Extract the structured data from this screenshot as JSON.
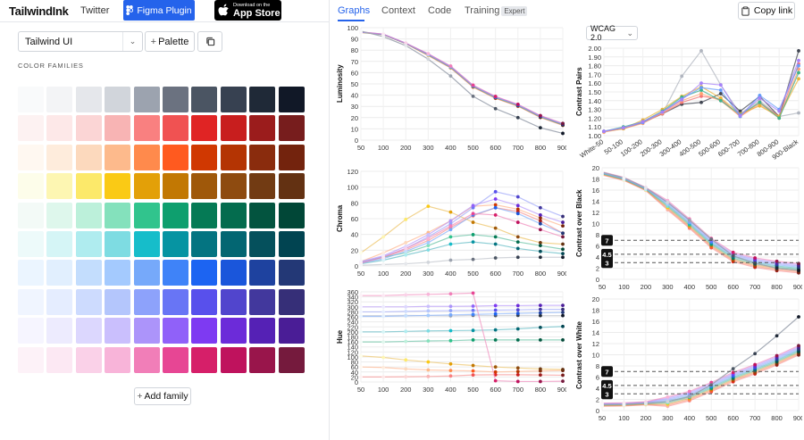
{
  "header": {
    "brand": "TailwindInk",
    "twitter": "Twitter",
    "figma": "Figma Plugin",
    "appstore_small": "Download on the",
    "appstore_large": "App Store"
  },
  "toolbar": {
    "select_value": "Tailwind UI",
    "palette_label": "Palette",
    "section_label": "COLOR FAMILIES",
    "add_family_label": "Add family"
  },
  "tabs": [
    {
      "label": "Graphs"
    },
    {
      "label": "Context"
    },
    {
      "label": "Code"
    },
    {
      "label": "Training"
    }
  ],
  "training_badge": "Expert",
  "copy_link": "Copy link",
  "wcag_value": "WCAG 2.0",
  "palette": {
    "rows": [
      [
        "#f9fafb",
        "#f3f4f6",
        "#e5e7eb",
        "#d1d5db",
        "#9ca3af",
        "#6b7280",
        "#4b5563",
        "#374151",
        "#1f2937",
        "#111827"
      ],
      [
        "#fdf2f2",
        "#fde8e8",
        "#fbd5d5",
        "#f8b4b4",
        "#f98080",
        "#f05252",
        "#e02424",
        "#c81e1e",
        "#9b1c1c",
        "#771d1d"
      ],
      [
        "#fff8f1",
        "#feecdc",
        "#fcd9bd",
        "#fdba8c",
        "#ff8a4c",
        "#ff5a1f",
        "#d03801",
        "#b43403",
        "#8a2c0d",
        "#73230d"
      ],
      [
        "#fdfdea",
        "#fdf6b2",
        "#fce96a",
        "#faca15",
        "#e3a008",
        "#c27803",
        "#9f580a",
        "#8e4b10",
        "#723b13",
        "#633112"
      ],
      [
        "#f3faf7",
        "#def7ec",
        "#bcf0da",
        "#84e1bc",
        "#31c48d",
        "#0e9f6e",
        "#057a55",
        "#046c4e",
        "#03543f",
        "#014737"
      ],
      [
        "#edfafa",
        "#d5f5f6",
        "#afecef",
        "#7edce2",
        "#16bdca",
        "#0694a2",
        "#047481",
        "#036672",
        "#05505c",
        "#014451"
      ],
      [
        "#ebf5ff",
        "#e1effe",
        "#c3ddfd",
        "#a4cafe",
        "#76a9fa",
        "#3f83f8",
        "#1c64f2",
        "#1a56db",
        "#1e429f",
        "#233876"
      ],
      [
        "#f0f5ff",
        "#e5edff",
        "#cddbfe",
        "#b4c6fc",
        "#8da2fb",
        "#6875f5",
        "#5850ec",
        "#5145cd",
        "#42389d",
        "#362f78"
      ],
      [
        "#f6f5ff",
        "#edebfe",
        "#dcd7fe",
        "#cabffd",
        "#ac94fa",
        "#9061f9",
        "#7e3af2",
        "#6c2bd9",
        "#5521b5",
        "#4a1d96"
      ],
      [
        "#fdf2f8",
        "#fce8f3",
        "#fad1e8",
        "#f8b4d9",
        "#f17eb8",
        "#e74694",
        "#d61f69",
        "#bf125d",
        "#99154b",
        "#751a3d"
      ]
    ]
  },
  "graphs": {
    "x_shades": [
      "50",
      "100",
      "200",
      "300",
      "400",
      "500",
      "600",
      "700",
      "800",
      "900"
    ],
    "pair_labels": [
      "White-50",
      "50-100",
      "100-200",
      "200-300",
      "300-400",
      "400-500",
      "500-600",
      "600-700",
      "700-800",
      "800-900",
      "900-Black"
    ],
    "luminosity": {
      "ylabel": "Luminosity",
      "yticks": [
        "0",
        "10",
        "20",
        "30",
        "40",
        "50",
        "60",
        "70",
        "80",
        "90",
        "100"
      ],
      "ymax": 100,
      "gray": [
        97,
        92,
        84,
        72,
        57,
        39,
        28,
        20,
        11,
        6
      ],
      "colored": [
        96,
        94,
        86,
        76,
        65,
        48,
        38,
        31,
        21,
        14
      ]
    },
    "chroma": {
      "ylabel": "Chroma",
      "yticks": [
        "0",
        "20",
        "40",
        "60",
        "80",
        "100",
        "120"
      ],
      "ymax": 130,
      "series": [
        {
          "color": "#9ca3af",
          "values": [
            1,
            2,
            3,
            5,
            8,
            9,
            11,
            12,
            12,
            12
          ]
        },
        {
          "color": "#f05252",
          "values": [
            5,
            12,
            22,
            35,
            53,
            69,
            80,
            75,
            62,
            45
          ]
        },
        {
          "color": "#ff8a4c",
          "values": [
            6,
            18,
            32,
            46,
            62,
            82,
            84,
            78,
            66,
            55
          ]
        },
        {
          "color": "#e3a008",
          "values": [
            18,
            40,
            64,
            82,
            74,
            60,
            52,
            40,
            32,
            30
          ]
        },
        {
          "color": "#0e9f6e",
          "values": [
            5,
            12,
            18,
            28,
            40,
            43,
            40,
            33,
            28,
            23
          ]
        },
        {
          "color": "#0694a2",
          "values": [
            3,
            8,
            15,
            22,
            30,
            33,
            30,
            24,
            20,
            17
          ]
        },
        {
          "color": "#3f83f8",
          "values": [
            4,
            10,
            20,
            32,
            50,
            70,
            80,
            72,
            58,
            45
          ]
        },
        {
          "color": "#6875f5",
          "values": [
            5,
            13,
            24,
            40,
            58,
            80,
            102,
            95,
            80,
            68
          ]
        },
        {
          "color": "#9061f9",
          "values": [
            6,
            14,
            27,
            43,
            62,
            83,
            92,
            83,
            70,
            60
          ]
        },
        {
          "color": "#e74694",
          "values": [
            4,
            12,
            24,
            38,
            55,
            72,
            70,
            60,
            50,
            40
          ]
        }
      ]
    },
    "hue": {
      "ylabel": "Hue",
      "yticks": [
        "0",
        "20",
        "40",
        "60",
        "80",
        "100",
        "120",
        "140",
        "160",
        "180",
        "200",
        "220",
        "240",
        "260",
        "280",
        "300",
        "320",
        "340",
        "360"
      ],
      "ymax": 360,
      "series": [
        {
          "color": "#9ca3af",
          "values": [
            265,
            265,
            266,
            265,
            264,
            266,
            265,
            266,
            265,
            265
          ]
        },
        {
          "color": "#f05252",
          "values": [
            20,
            20,
            21,
            22,
            24,
            28,
            29,
            29,
            28,
            27
          ]
        },
        {
          "color": "#ff8a4c",
          "values": [
            60,
            58,
            52,
            48,
            46,
            44,
            40,
            42,
            44,
            46
          ]
        },
        {
          "color": "#e3a008",
          "values": [
            104,
            98,
            88,
            80,
            72,
            66,
            60,
            56,
            52,
            50
          ]
        },
        {
          "color": "#0e9f6e",
          "values": [
            160,
            160,
            162,
            164,
            165,
            168,
            168,
            168,
            168,
            168
          ]
        },
        {
          "color": "#0694a2",
          "values": [
            200,
            200,
            202,
            204,
            205,
            206,
            208,
            212,
            218,
            222
          ]
        },
        {
          "color": "#3f83f8",
          "values": [
            262,
            262,
            264,
            266,
            268,
            270,
            272,
            274,
            276,
            278
          ]
        },
        {
          "color": "#6875f5",
          "values": [
            280,
            280,
            282,
            284,
            285,
            286,
            287,
            288,
            290,
            290
          ]
        },
        {
          "color": "#9061f9",
          "values": [
            300,
            300,
            300,
            302,
            302,
            303,
            305,
            305,
            306,
            306
          ]
        },
        {
          "color": "#e74694",
          "values": [
            345,
            345,
            348,
            350,
            352,
            355,
            5,
            2,
            2,
            3
          ]
        }
      ]
    },
    "contrast_pairs": {
      "ylabel": "Contrast Pairs",
      "yticks": [
        "1.00",
        "1.10",
        "1.20",
        "1.30",
        "1.40",
        "1.50",
        "1.60",
        "1.70",
        "1.80",
        "1.90",
        "2.00"
      ],
      "ymin": 1,
      "ymax": 2,
      "series": [
        {
          "color": "#9ca3af",
          "values": [
            1.05,
            1.08,
            1.15,
            1.25,
            1.68,
            1.97,
            1.58,
            1.25,
            1.4,
            1.22,
            1.26
          ]
        },
        {
          "color": "#111827",
          "values": [
            1.05,
            1.08,
            1.15,
            1.25,
            1.36,
            1.38,
            1.48,
            1.28,
            1.45,
            1.22,
            1.97
          ]
        },
        {
          "color": "#f05252",
          "values": [
            1.05,
            1.08,
            1.15,
            1.25,
            1.38,
            1.45,
            1.42,
            1.22,
            1.38,
            1.22,
            1.82
          ]
        },
        {
          "color": "#ff8a4c",
          "values": [
            1.04,
            1.08,
            1.14,
            1.26,
            1.4,
            1.48,
            1.4,
            1.22,
            1.36,
            1.2,
            1.76
          ]
        },
        {
          "color": "#e3a008",
          "values": [
            1.05,
            1.08,
            1.18,
            1.3,
            1.45,
            1.56,
            1.43,
            1.25,
            1.34,
            1.22,
            1.65
          ]
        },
        {
          "color": "#0e9f6e",
          "values": [
            1.05,
            1.1,
            1.16,
            1.28,
            1.44,
            1.52,
            1.4,
            1.24,
            1.38,
            1.2,
            1.72
          ]
        },
        {
          "color": "#3f83f8",
          "values": [
            1.05,
            1.09,
            1.15,
            1.27,
            1.42,
            1.55,
            1.52,
            1.22,
            1.46,
            1.3,
            1.8
          ]
        },
        {
          "color": "#9061f9",
          "values": [
            1.05,
            1.09,
            1.16,
            1.27,
            1.41,
            1.6,
            1.58,
            1.23,
            1.43,
            1.28,
            1.86
          ]
        }
      ]
    },
    "contrast_black": {
      "ylabel": "Contrast over Black",
      "yticks": [
        "0",
        "2",
        "4",
        "6",
        "8",
        "10",
        "12",
        "14",
        "16",
        "18",
        "20"
      ],
      "ymax": 20,
      "gray": [
        19.2,
        18.2,
        16.4,
        13.8,
        10.6,
        7.2,
        4.2,
        2.9,
        2.0,
        1.6
      ],
      "colored": [
        19.0,
        18.0,
        16.2,
        13.3,
        10.0,
        6.5,
        4.0,
        3.0,
        2.4,
        2.0
      ],
      "thresholds": [
        "7",
        "4.5",
        "3"
      ]
    },
    "contrast_white": {
      "ylabel": "Contrast over White",
      "yticks": [
        "0",
        "2",
        "4",
        "6",
        "8",
        "10",
        "12",
        "14",
        "16",
        "18",
        "20"
      ],
      "ymax": 20,
      "gray": [
        1.05,
        1.1,
        1.3,
        1.6,
        2.5,
        4.6,
        7.5,
        10.2,
        13.4,
        16.8
      ],
      "colored": [
        1.05,
        1.1,
        1.3,
        1.6,
        2.6,
        4.2,
        6.0,
        7.4,
        9.0,
        10.8
      ],
      "thresholds": [
        "7",
        "4.5",
        "3"
      ]
    }
  }
}
